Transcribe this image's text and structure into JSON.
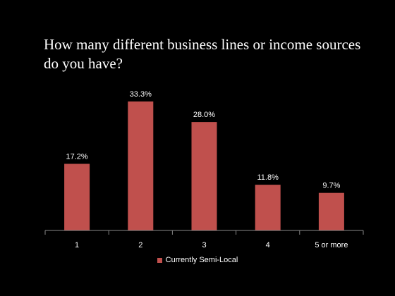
{
  "colors": {
    "background": "#000000",
    "bar": "#c0504d",
    "axis": "#888888",
    "text": "#ffffff"
  },
  "chart_data": {
    "type": "bar",
    "title": "How many different business lines or income sources do you have?",
    "categories": [
      "1",
      "2",
      "3",
      "4",
      "5 or more"
    ],
    "series": [
      {
        "name": "Currently Semi-Local",
        "values": [
          17.2,
          33.3,
          28.0,
          11.8,
          9.7
        ],
        "labels": [
          "17.2%",
          "33.3%",
          "28.0%",
          "11.8%",
          "9.7%"
        ]
      }
    ],
    "ylim": [
      0,
      33.3
    ],
    "grid": false,
    "legend": "bottom"
  }
}
